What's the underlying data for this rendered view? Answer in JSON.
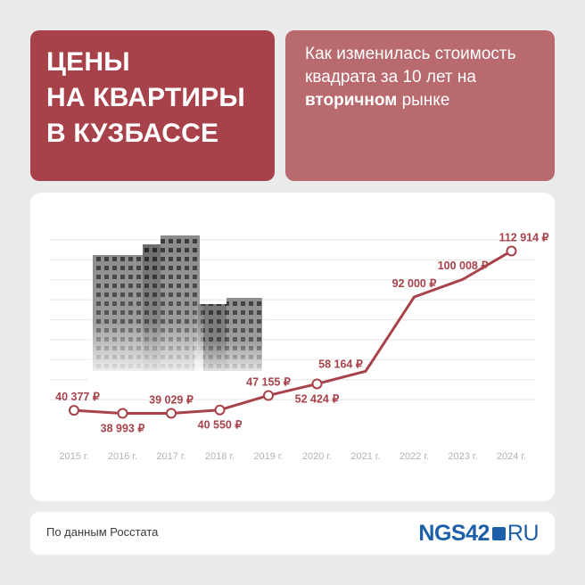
{
  "title": {
    "lines": [
      "ЦЕНЫ",
      "НА КВАРТИРЫ",
      "В КУЗБАССЕ"
    ]
  },
  "subtitle": {
    "part1": "Как изменилась стоимость квадрата за 10 лет на ",
    "bold": "вторичном",
    "part2": " рынке"
  },
  "footer": {
    "source": "По данным Росстата",
    "logo_main": "NGS42",
    "logo_suffix": "RU"
  },
  "colors": {
    "title_bg": "#a8424a",
    "subtitle_bg": "#b96a6e",
    "series": "#a8424a",
    "logo": "#1d5fa8"
  },
  "decor": {
    "illustration": "apartment-buildings-icon"
  },
  "chart_data": {
    "type": "line",
    "categories": [
      "2015 г.",
      "2016 г.",
      "2017 г.",
      "2018 г.",
      "2019 г.",
      "2020 г.",
      "2021 г.",
      "2022 г.",
      "2023 г.",
      "2024 г."
    ],
    "values": [
      40377,
      38993,
      39029,
      40550,
      47155,
      52424,
      58164,
      92000,
      100008,
      112914
    ],
    "labels": [
      "40 377 ₽",
      "38 993 ₽",
      "39 029 ₽",
      "40 550 ₽",
      "47 155 ₽",
      "52 424 ₽",
      "58 164 ₽",
      "92 000 ₽",
      "100 008 ₽",
      "112 914 ₽"
    ],
    "label_positions": [
      "above",
      "below",
      "above",
      "below",
      "above",
      "below",
      "above",
      "above",
      "above",
      "above"
    ],
    "markers": [
      true,
      true,
      true,
      true,
      true,
      true,
      false,
      false,
      false,
      true
    ],
    "ylim": [
      38000,
      120000
    ],
    "grid": true,
    "legend": "none"
  }
}
